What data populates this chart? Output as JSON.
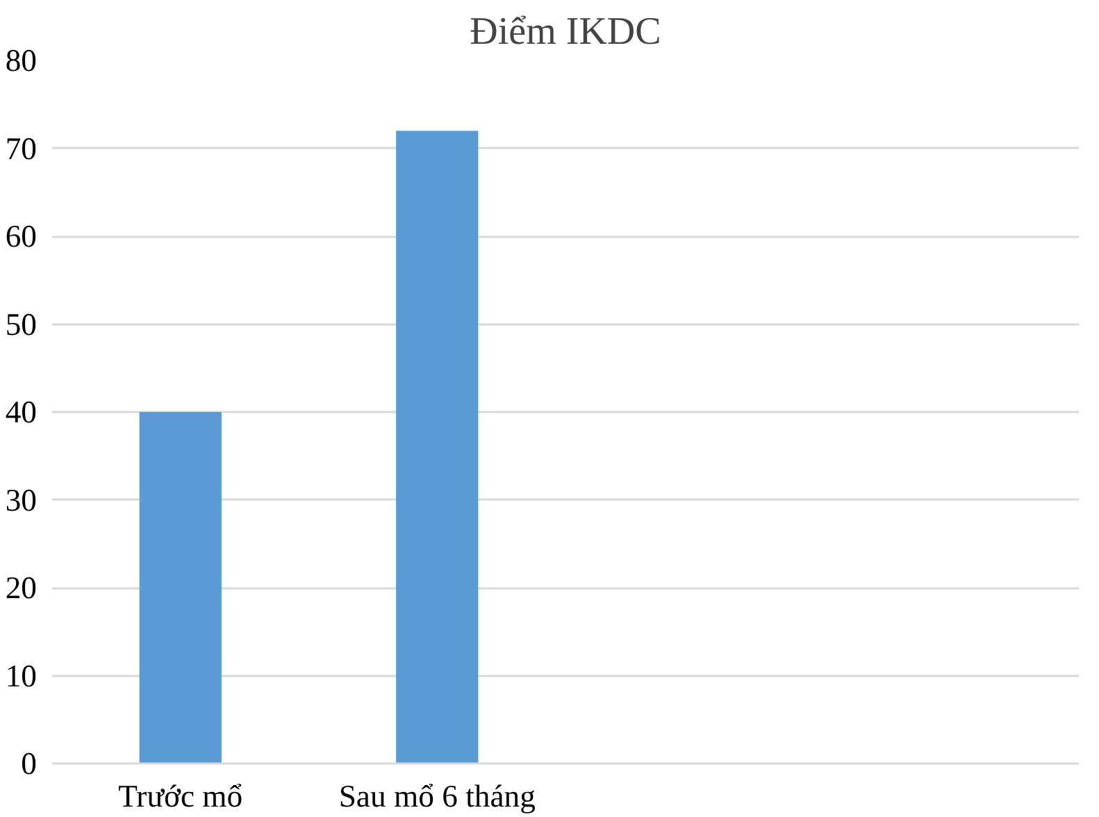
{
  "chart_data": {
    "type": "bar",
    "title": "Điểm IKDC",
    "categories": [
      "Trước mổ",
      "Sau mổ 6 tháng",
      null,
      null
    ],
    "values": [
      40,
      72,
      null,
      null
    ],
    "color": "#5b9bd5",
    "ylim": [
      0,
      80
    ],
    "yticks": [
      0,
      10,
      20,
      30,
      40,
      50,
      60,
      70,
      80
    ],
    "grid": "y"
  }
}
